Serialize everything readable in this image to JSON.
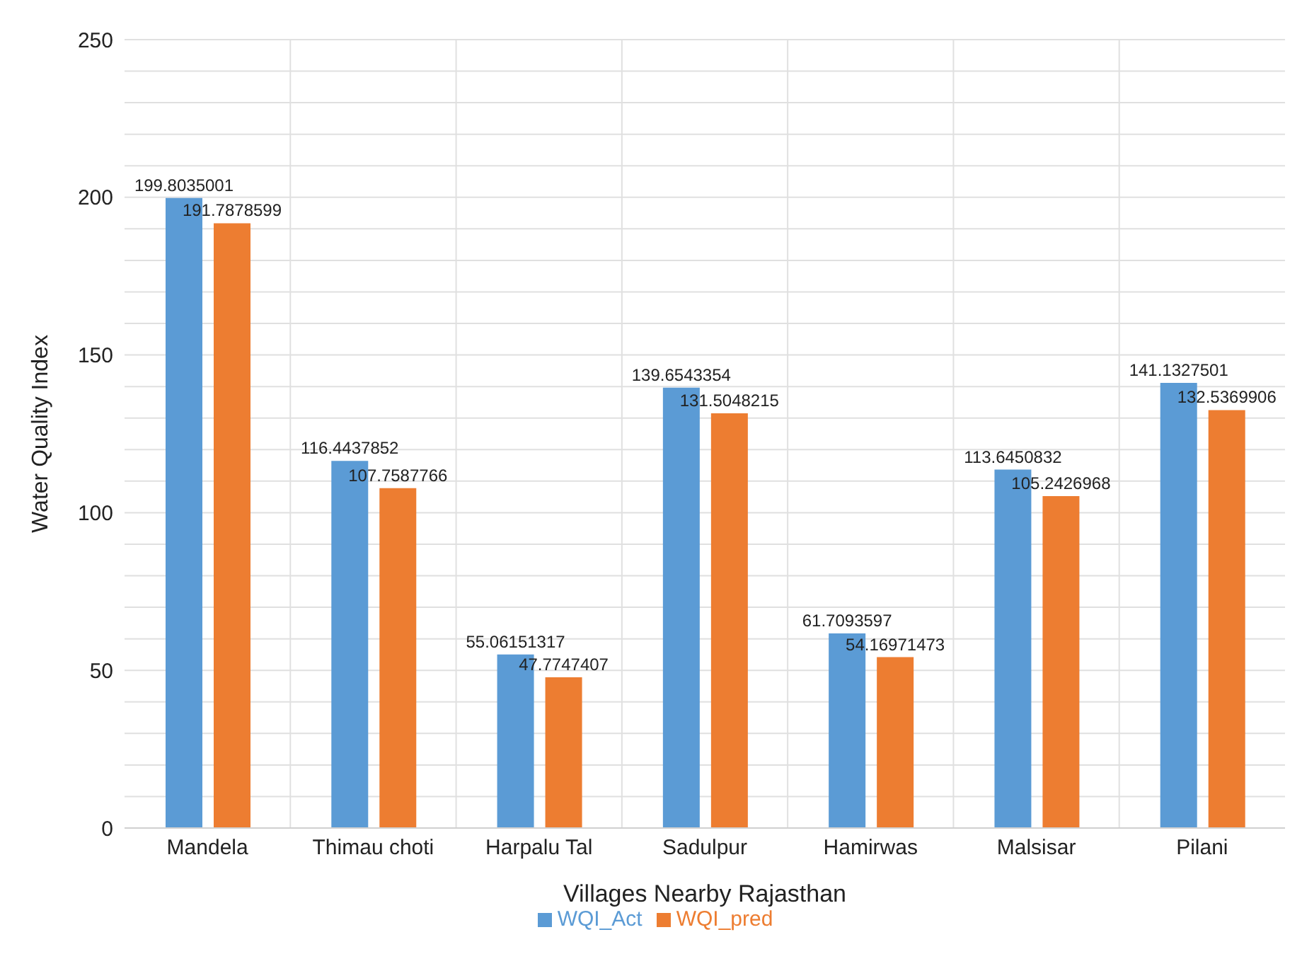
{
  "chart_data": {
    "type": "bar",
    "xlabel": "Villages Nearby Rajasthan",
    "ylabel": "Water Quality Index",
    "categories": [
      "Mandela",
      "Thimau choti",
      "Harpalu Tal",
      "Sadulpur",
      "Hamirwas",
      "Malsisar",
      "Pilani"
    ],
    "series": [
      {
        "name": "WQI_Act",
        "color": "#5b9bd5",
        "values": [
          199.8035001,
          116.4437852,
          55.06151317,
          139.6543354,
          61.7093597,
          113.6450832,
          141.1327501
        ]
      },
      {
        "name": "WQI_pred",
        "color": "#ed7d31",
        "values": [
          191.7878599,
          107.7587766,
          47.7747407,
          131.5048215,
          54.16971473,
          105.2426968,
          132.5369906
        ]
      }
    ],
    "ylim": [
      0,
      250
    ],
    "yticks": [
      0,
      {
        "value": 10,
        "label": null
      },
      {
        "value": 20,
        "label": null
      },
      {
        "value": 30,
        "label": null
      },
      {
        "value": 40,
        "label": null
      },
      50,
      {
        "value": 60,
        "label": null
      },
      {
        "value": 70,
        "label": null
      },
      {
        "value": 80,
        "label": null
      },
      {
        "value": 90,
        "label": null
      },
      100,
      {
        "value": 110,
        "label": null
      },
      {
        "value": 120,
        "label": null
      },
      {
        "value": 130,
        "label": null
      },
      {
        "value": 140,
        "label": null
      },
      150,
      {
        "value": 160,
        "label": null
      },
      {
        "value": 170,
        "label": null
      },
      {
        "value": 180,
        "label": null
      },
      {
        "value": 190,
        "label": null
      },
      200,
      {
        "value": 210,
        "label": null
      },
      {
        "value": 220,
        "label": null
      },
      {
        "value": 230,
        "label": null
      },
      {
        "value": 240,
        "label": null
      },
      250
    ],
    "grid": true,
    "legend": "bottom",
    "data_labels": true
  }
}
